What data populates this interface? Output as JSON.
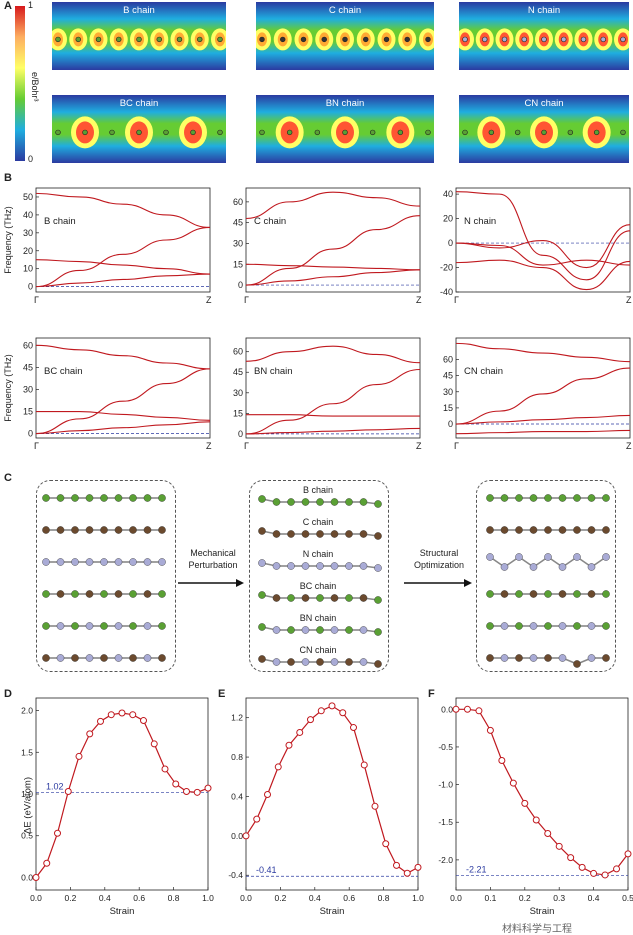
{
  "panel_a": {
    "letter": "A",
    "colorbar": {
      "max": "1",
      "min": "0",
      "unit": "e/Bohr³"
    },
    "maps": [
      {
        "label": "B chain",
        "atom": "B"
      },
      {
        "label": "C chain",
        "atom": "C"
      },
      {
        "label": "N chain",
        "atom": "N"
      },
      {
        "label": "BC chain",
        "atom": "BC"
      },
      {
        "label": "BN chain",
        "atom": "BN"
      },
      {
        "label": "CN chain",
        "atom": "CN"
      }
    ],
    "colors": {
      "blue": "#2b3aa0",
      "green": "#66cc33",
      "yellow": "#ffff66",
      "red": "#d7191c"
    }
  },
  "panel_b": {
    "letter": "B",
    "ylabel": "Frequency (THz)",
    "x_start": "Γ",
    "x_end": "Z",
    "plots": [
      {
        "label": "B chain",
        "ticks": [
          "0",
          "10",
          "20",
          "30",
          "40",
          "50"
        ],
        "ymin": -3,
        "ymax": 55,
        "curves": [
          [
            52,
            50,
            46,
            40,
            33
          ],
          [
            15,
            14,
            12,
            10,
            7
          ],
          [
            0,
            9,
            18,
            26,
            33
          ],
          [
            0,
            2,
            4,
            6,
            7
          ]
        ]
      },
      {
        "label": "C chain",
        "ticks": [
          "0",
          "15",
          "30",
          "45",
          "60"
        ],
        "ymin": -5,
        "ymax": 70,
        "curves": [
          [
            48,
            60,
            67,
            63,
            57
          ],
          [
            15,
            14,
            13,
            12,
            11
          ],
          [
            0,
            12,
            26,
            40,
            50
          ],
          [
            0,
            3,
            6,
            9,
            11
          ]
        ]
      },
      {
        "label": "N chain",
        "ticks": [
          "-40",
          "-20",
          "0",
          "20",
          "40"
        ],
        "ymin": -40,
        "ymax": 45,
        "curves": [
          [
            42,
            40,
            -10,
            -30,
            10
          ],
          [
            0,
            -4,
            2,
            -20,
            15
          ],
          [
            -16,
            -14,
            -20,
            -38,
            -15
          ],
          [
            0,
            -2,
            -18,
            -14,
            -18
          ]
        ]
      },
      {
        "label": "BC chain",
        "ticks": [
          "0",
          "15",
          "30",
          "45",
          "60"
        ],
        "ymin": -3,
        "ymax": 65,
        "curves": [
          [
            60,
            57,
            53,
            48,
            44
          ],
          [
            15,
            15,
            13,
            11,
            9
          ],
          [
            0,
            10,
            22,
            34,
            44
          ],
          [
            0,
            2,
            4,
            6,
            8
          ]
        ]
      },
      {
        "label": "BN chain",
        "ticks": [
          "0",
          "15",
          "30",
          "45",
          "60"
        ],
        "ymin": -3,
        "ymax": 70,
        "curves": [
          [
            53,
            60,
            64,
            58,
            52
          ],
          [
            14,
            14,
            13,
            13,
            13
          ],
          [
            0,
            10,
            22,
            36,
            47
          ],
          [
            0,
            1,
            2,
            3,
            4
          ]
        ]
      },
      {
        "label": "CN chain",
        "ticks": [
          "0",
          "15",
          "30",
          "45",
          "60"
        ],
        "ymin": -13,
        "ymax": 80,
        "curves": [
          [
            75,
            70,
            66,
            62,
            58
          ],
          [
            -9,
            -8,
            -7,
            -7,
            -6
          ],
          [
            0,
            12,
            28,
            42,
            52
          ],
          [
            0,
            2,
            4,
            6,
            8
          ]
        ]
      }
    ]
  },
  "panel_c": {
    "letter": "C",
    "arrow1": "Mechanical\nPerturbation",
    "arrow1_line1": "Mechanical",
    "arrow1_line2": "Perturbation",
    "arrow2_line1": "Structural",
    "arrow2_line2": "Optimization",
    "chain_labels": [
      "B chain",
      "C chain",
      "N chain",
      "BC chain",
      "BN chain",
      "CN chain"
    ],
    "colors": {
      "B": "#5aa034",
      "C": "#6b4a2e",
      "N": "#a9abd6"
    }
  },
  "panel_d": {
    "letter": "D",
    "ylabel": "ΔE (eV/atom)",
    "xlabel": "Strain",
    "x": [
      0,
      0.0625,
      0.125,
      0.1875,
      0.25,
      0.3125,
      0.375,
      0.4375,
      0.5,
      0.5625,
      0.625,
      0.6875,
      0.75,
      0.8125,
      0.875,
      0.9375,
      1.0
    ],
    "y": [
      0,
      0.17,
      0.53,
      1.03,
      1.45,
      1.72,
      1.87,
      1.95,
      1.97,
      1.95,
      1.88,
      1.6,
      1.3,
      1.12,
      1.03,
      1.02,
      1.07
    ],
    "xlim": [
      0,
      1.0
    ],
    "ylim": [
      -0.15,
      2.15
    ],
    "xticks": [
      "0.0",
      "0.2",
      "0.4",
      "0.6",
      "0.8",
      "1.0"
    ],
    "yticks": [
      "0.0",
      "0.5",
      "1.0",
      "1.5",
      "2.0"
    ],
    "ref_value": "1.02",
    "ref_y": 1.02
  },
  "panel_e": {
    "letter": "E",
    "xlabel": "Strain",
    "x": [
      0,
      0.0625,
      0.125,
      0.1875,
      0.25,
      0.3125,
      0.375,
      0.4375,
      0.5,
      0.5625,
      0.625,
      0.6875,
      0.75,
      0.8125,
      0.875,
      0.9375,
      1.0
    ],
    "y": [
      0,
      0.17,
      0.42,
      0.7,
      0.92,
      1.05,
      1.18,
      1.27,
      1.32,
      1.25,
      1.1,
      0.72,
      0.3,
      -0.08,
      -0.3,
      -0.38,
      -0.32
    ],
    "xlim": [
      0,
      1.0
    ],
    "ylim": [
      -0.55,
      1.4
    ],
    "xticks": [
      "0.0",
      "0.2",
      "0.4",
      "0.6",
      "0.8",
      "1.0"
    ],
    "yticks": [
      "-0.4",
      "0.0",
      "0.4",
      "0.8",
      "1.2"
    ],
    "ref_value": "-0.41",
    "ref_y": -0.41
  },
  "panel_f": {
    "letter": "F",
    "xlabel": "Strain",
    "x": [
      0,
      0.0333,
      0.0667,
      0.1,
      0.1333,
      0.1667,
      0.2,
      0.2333,
      0.2667,
      0.3,
      0.3333,
      0.3667,
      0.4,
      0.4333,
      0.4667,
      0.5
    ],
    "y": [
      0,
      0,
      -0.02,
      -0.28,
      -0.68,
      -0.98,
      -1.25,
      -1.47,
      -1.65,
      -1.82,
      -1.97,
      -2.1,
      -2.18,
      -2.2,
      -2.12,
      -1.92
    ],
    "xlim": [
      0,
      0.5
    ],
    "ylim": [
      -2.4,
      0.15
    ],
    "xticks": [
      "0.0",
      "0.1",
      "0.2",
      "0.3",
      "0.4",
      "0.5"
    ],
    "yticks": [
      "-2.0",
      "-1.5",
      "-1.0",
      "-0.5",
      "0.0"
    ],
    "ref_value": "-2.21",
    "ref_y": -2.21
  },
  "watermark": "材料科学与工程",
  "line_color": "#c0191f"
}
